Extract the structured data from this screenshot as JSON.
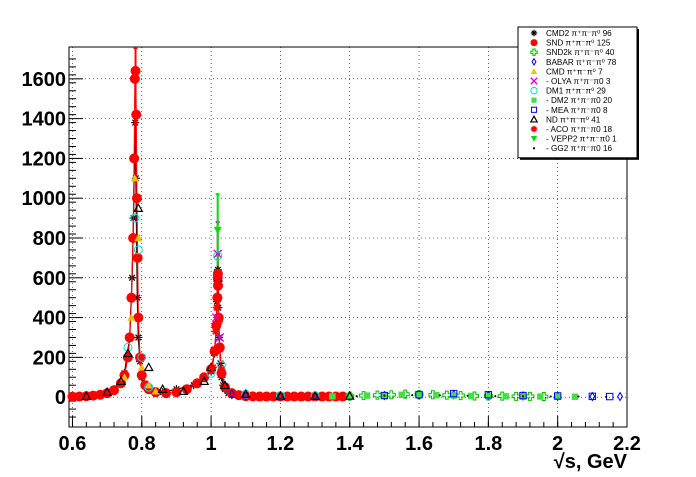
{
  "chart_data": {
    "type": "scatter",
    "title": "",
    "xlabel": "√s, GeV",
    "ylabel": "",
    "xlim": [
      0.59,
      2.2
    ],
    "ylim": [
      -150,
      1760
    ],
    "grid": true,
    "legend_position": "top-right",
    "x_ticks": [
      "0.6",
      "0.8",
      "1",
      "1.2",
      "1.4",
      "1.6",
      "1.8",
      "2",
      "2.2"
    ],
    "x_tick_values": [
      0.6,
      0.8,
      1.0,
      1.2,
      1.4,
      1.6,
      1.8,
      2.0,
      2.2
    ],
    "y_ticks": [
      "0",
      "200",
      "400",
      "600",
      "800",
      "1000",
      "1200",
      "1400",
      "1600"
    ],
    "y_tick_values": [
      0,
      200,
      400,
      600,
      800,
      1000,
      1200,
      1400,
      1600
    ],
    "series": [
      {
        "name": "CMD2 π⁺π⁻π⁰ 96",
        "marker": "asterisk",
        "color": "#000000",
        "x": [
          0.66,
          0.72,
          0.75,
          0.765,
          0.772,
          0.776,
          0.779,
          0.781,
          0.783,
          0.785,
          0.787,
          0.79,
          0.795,
          0.8,
          0.81,
          0.83,
          0.86,
          0.9,
          0.95,
          0.98,
          1.0,
          1.01,
          1.015,
          1.017,
          1.019,
          1.0195,
          1.02,
          1.021,
          1.023,
          1.027,
          1.03,
          1.035,
          1.04,
          1.05,
          1.06
        ],
        "y": [
          5,
          40,
          120,
          300,
          600,
          900,
          1200,
          1380,
          1100,
          800,
          500,
          300,
          180,
          100,
          60,
          35,
          25,
          40,
          60,
          100,
          130,
          220,
          350,
          480,
          620,
          640,
          580,
          450,
          300,
          170,
          100,
          60,
          40,
          20,
          10
        ]
      },
      {
        "name": "SND π⁺π⁻π⁰ 125",
        "marker": "filled-circle",
        "color": "#ff0000",
        "x": [
          0.6,
          0.62,
          0.64,
          0.66,
          0.68,
          0.7,
          0.72,
          0.74,
          0.75,
          0.76,
          0.765,
          0.77,
          0.775,
          0.778,
          0.78,
          0.782,
          0.784,
          0.786,
          0.788,
          0.79,
          0.795,
          0.8,
          0.81,
          0.82,
          0.84,
          0.87,
          0.9,
          0.93,
          0.96,
          0.98,
          1.0,
          1.01,
          1.015,
          1.018,
          1.019,
          1.0195,
          1.02,
          1.022,
          1.025,
          1.03,
          1.04,
          1.06,
          1.08,
          1.1,
          1.12,
          1.14,
          1.16,
          1.18,
          1.2,
          1.22,
          1.24,
          1.26,
          1.28,
          1.3,
          1.32,
          1.34,
          1.36,
          1.38
        ],
        "y": [
          2,
          3,
          5,
          8,
          12,
          20,
          35,
          70,
          110,
          200,
          300,
          500,
          800,
          1200,
          1600,
          1640,
          1420,
          1000,
          700,
          400,
          200,
          110,
          60,
          40,
          25,
          20,
          25,
          40,
          70,
          100,
          140,
          230,
          360,
          500,
          600,
          620,
          560,
          400,
          250,
          120,
          50,
          20,
          10,
          5,
          4,
          3,
          3,
          3,
          3,
          3,
          3,
          3,
          3,
          3,
          3,
          3,
          3,
          3
        ]
      },
      {
        "name": "SND2k π⁺π⁻π⁰ 40",
        "marker": "open-cross",
        "color": "#00bb00",
        "x": [
          1.4,
          1.44,
          1.48,
          1.52,
          1.56,
          1.6,
          1.64,
          1.68,
          1.72,
          1.76,
          1.8,
          1.84,
          1.88,
          1.92,
          1.96
        ],
        "y": [
          5,
          8,
          10,
          12,
          15,
          14,
          12,
          10,
          8,
          6,
          6,
          5,
          4,
          4,
          3
        ]
      },
      {
        "name": "BABAR π⁺π⁻π⁰ 78",
        "marker": "open-diamond",
        "color": "#0000ff",
        "x": [
          1.06,
          1.1,
          1.2,
          1.3,
          1.4,
          1.5,
          1.6,
          1.7,
          1.8,
          1.9,
          2.0,
          2.1,
          2.18
        ],
        "y": [
          15,
          8,
          5,
          5,
          6,
          8,
          10,
          12,
          8,
          6,
          4,
          3,
          3
        ]
      },
      {
        "name": "CMD π⁺π⁻π⁰ 7",
        "marker": "filled-triangle",
        "color": "#f0c000",
        "x": [
          0.75,
          0.77,
          0.78,
          0.79,
          0.8,
          0.82,
          0.84
        ],
        "y": [
          100,
          400,
          1100,
          800,
          150,
          60,
          30
        ]
      },
      {
        "name": "- OLYA π⁺π⁻π0 3",
        "marker": "cross",
        "color": "#dd00dd",
        "x": [
          1.015,
          1.019,
          1.025
        ],
        "y": [
          400,
          720,
          300
        ]
      },
      {
        "name": "DM1 π⁺π⁻π⁰ 29",
        "marker": "open-circle",
        "color": "#00dddd",
        "x": [
          0.76,
          0.78,
          0.79,
          0.8,
          0.82,
          1.0,
          1.019,
          1.03,
          1.1,
          1.2,
          1.3
        ],
        "y": [
          250,
          900,
          740,
          200,
          50,
          120,
          710,
          160,
          15,
          8,
          6
        ]
      },
      {
        "name": "- DM2 π⁺π⁻π0 20",
        "marker": "filled-square",
        "color": "#44dd44",
        "x": [
          1.35,
          1.4,
          1.45,
          1.5,
          1.55,
          1.6,
          1.65,
          1.7,
          1.75,
          1.8,
          1.85,
          1.9,
          1.95,
          2.0,
          2.05
        ],
        "y": [
          4,
          5,
          8,
          10,
          12,
          14,
          10,
          8,
          6,
          5,
          4,
          3,
          3,
          2,
          2
        ]
      },
      {
        "name": "- MEA π⁺π⁻π0 8",
        "marker": "open-square",
        "color": "#0000ff",
        "x": [
          1.5,
          1.6,
          1.7,
          1.8,
          1.9,
          2.0,
          2.1,
          2.15
        ],
        "y": [
          8,
          12,
          18,
          12,
          8,
          6,
          4,
          3
        ]
      },
      {
        "name": "ND π⁺π⁻π⁰ 41",
        "marker": "open-triangle",
        "color": "#000000",
        "x": [
          0.64,
          0.7,
          0.74,
          0.76,
          0.79,
          0.82,
          0.86,
          0.92,
          0.98,
          1.0,
          1.02,
          1.04,
          1.1,
          1.2,
          1.3,
          1.4
        ],
        "y": [
          5,
          25,
          80,
          220,
          950,
          150,
          40,
          30,
          80,
          150,
          600,
          60,
          15,
          6,
          5,
          6
        ]
      },
      {
        "name": "- ACO π⁺π⁻π0 18",
        "marker": "star",
        "color": "#ff0000",
        "x": [
          1.005,
          1.01,
          1.013,
          1.016,
          1.018,
          1.019,
          1.0195,
          1.02,
          1.021,
          1.023,
          1.026,
          1.03
        ],
        "y": [
          150,
          240,
          330,
          450,
          570,
          610,
          620,
          590,
          500,
          380,
          240,
          140
        ]
      },
      {
        "name": "- VEPP2 π⁺π⁻π0 1",
        "marker": "filled-down-triangle",
        "color": "#00dd00",
        "x": [
          1.019
        ],
        "y": [
          840
        ]
      },
      {
        "name": "- GG2 π⁺π⁻π0 16",
        "marker": "dot",
        "color": "#000000",
        "x": [
          1.42,
          1.5,
          1.58,
          1.66,
          1.74,
          1.82,
          1.9,
          1.98,
          2.06,
          2.14
        ],
        "y": [
          5,
          8,
          10,
          9,
          7,
          5,
          4,
          3,
          3,
          2
        ]
      }
    ],
    "error_bars": [
      {
        "series": "SND π⁺π⁻π⁰ 125",
        "x": 0.782,
        "low": 1450,
        "high": 1760
      },
      {
        "series": "SND π⁺π⁻π⁰ 125",
        "x": 1.0195,
        "low": 500,
        "high": 720
      },
      {
        "series": "- OLYA π⁺π⁻π0 3",
        "x": 1.019,
        "low": 600,
        "high": 880
      },
      {
        "series": "- VEPP2 π⁺π⁻π0 1",
        "x": 1.019,
        "low": 600,
        "high": 1020
      }
    ]
  }
}
